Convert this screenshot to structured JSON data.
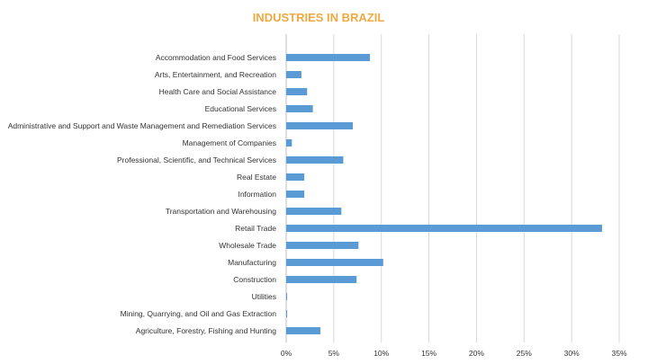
{
  "chart_data": {
    "type": "bar",
    "orientation": "horizontal",
    "title": "INDUSTRIES IN BRAZIL",
    "xlabel": "",
    "ylabel": "",
    "categories": [
      "Accommodation and Food Services",
      "Arts, Entertainment, and Recreation",
      "Health Care and Social Assistance",
      "Educational Services",
      "Administrative and Support and Waste Management and Remediation Services",
      "Management of Companies",
      "Professional, Scientific, and Technical Services",
      "Real Estate",
      "Information",
      "Transportation and Warehousing",
      "Retail Trade",
      "Wholesale Trade",
      "Manufacturing",
      "Construction",
      "Utilities",
      "Mining, Quarrying, and Oil and Gas Extraction",
      "Agriculture, Forestry, Fishing and Hunting"
    ],
    "values": [
      8.8,
      1.6,
      2.2,
      2.8,
      7.0,
      0.6,
      6.0,
      1.9,
      1.9,
      5.8,
      33.2,
      7.6,
      10.2,
      7.4,
      0.1,
      0.1,
      3.6
    ],
    "xlim": [
      0,
      35
    ],
    "xticks": [
      0,
      5,
      10,
      15,
      20,
      25,
      30,
      35
    ],
    "tick_format": "{v}%",
    "grid": true,
    "legend": "none",
    "colors": {
      "bar": "#5b9bd5",
      "title": "#f0a941",
      "grid": "#d9d9d9",
      "text": "#333333"
    }
  }
}
